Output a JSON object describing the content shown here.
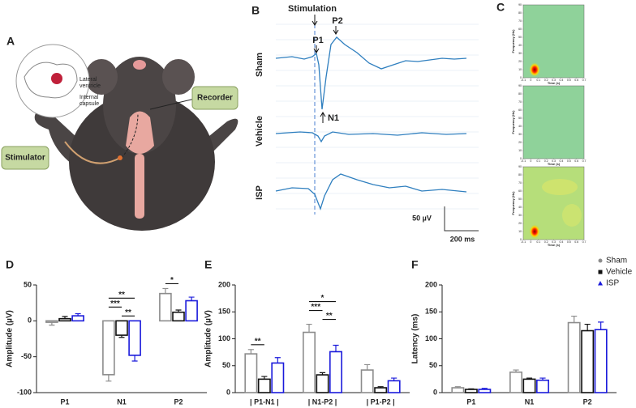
{
  "panel_a": {
    "letter": "A",
    "inset_labels": [
      [
        "Lateral",
        "ventricle"
      ],
      [
        "Internal",
        "capsule"
      ]
    ],
    "recorder": "Recorder",
    "stimulator": "Stimulator"
  },
  "panel_b": {
    "letter": "B",
    "stimulation": "Stimulation",
    "peaks": [
      "P1",
      "P2",
      "N1"
    ],
    "rows": [
      "Sham",
      "Vehicle",
      "ISP"
    ],
    "scale_v": "50 µV",
    "scale_t": "200 ms"
  },
  "panel_c": {
    "letter": "C",
    "ylabel": "Frequency (Hz)",
    "xlabel": "Time (s)",
    "ylim": [
      0,
      90
    ],
    "yticks": [
      0,
      10,
      20,
      30,
      40,
      50,
      60,
      70,
      80,
      90
    ],
    "xlim": [
      -0.1,
      0.7
    ],
    "xticks": [
      -0.1,
      0,
      0.1,
      0.2,
      0.3,
      0.4,
      0.5,
      0.6,
      0.7
    ]
  },
  "chart_data": [
    {
      "type": "bar",
      "panel": "D",
      "ylabel": "Amplitude (µV)",
      "categories": [
        "P1",
        "N1",
        "P2"
      ],
      "ylim": [
        -100,
        50
      ],
      "yticks": [
        -100,
        -50,
        0,
        50
      ],
      "series": [
        {
          "name": "Sham",
          "color": "#8c8c8c",
          "values": [
            -2,
            -75,
            38
          ],
          "errors": [
            4,
            9,
            7
          ]
        },
        {
          "name": "Vehicle",
          "color": "#111111",
          "values": [
            3,
            -20,
            12
          ],
          "errors": [
            3,
            3,
            3
          ]
        },
        {
          "name": "ISP",
          "color": "#1a1adb",
          "values": [
            7,
            -48,
            28
          ],
          "errors": [
            3,
            8,
            5
          ]
        }
      ],
      "annotations": [
        {
          "text": "**",
          "category": "N1",
          "between": [
            "Vehicle",
            "ISP"
          ]
        },
        {
          "text": "***",
          "category": "N1",
          "between": [
            "Sham",
            "Vehicle"
          ]
        },
        {
          "text": "**",
          "category": "N1",
          "between": [
            "Sham",
            "ISP"
          ]
        },
        {
          "text": "*",
          "category": "P2",
          "between": [
            "Sham",
            "Vehicle"
          ]
        }
      ]
    },
    {
      "type": "bar",
      "panel": "E",
      "ylabel": "Amplitude (µV)",
      "categories": [
        "| P1-N1 |",
        "| N1-P2 |",
        "| P1-P2 |"
      ],
      "ylim": [
        0,
        200
      ],
      "yticks": [
        0,
        50,
        100,
        150,
        200
      ],
      "series": [
        {
          "name": "Sham",
          "color": "#8c8c8c",
          "values": [
            72,
            112,
            42
          ],
          "errors": [
            8,
            15,
            10
          ]
        },
        {
          "name": "Vehicle",
          "color": "#111111",
          "values": [
            25,
            33,
            9
          ],
          "errors": [
            5,
            4,
            2
          ]
        },
        {
          "name": "ISP",
          "color": "#1a1adb",
          "values": [
            55,
            76,
            22
          ],
          "errors": [
            10,
            12,
            5
          ]
        }
      ],
      "annotations": [
        {
          "text": "**",
          "category": "| P1-N1 |",
          "between": [
            "Sham",
            "Vehicle"
          ]
        },
        {
          "text": "**",
          "category": "| N1-P2 |",
          "between": [
            "Vehicle",
            "ISP"
          ]
        },
        {
          "text": "***",
          "category": "| N1-P2 |",
          "between": [
            "Sham",
            "Vehicle"
          ]
        },
        {
          "text": "*",
          "category": "| N1-P2 |",
          "between": [
            "Sham",
            "ISP"
          ]
        }
      ]
    },
    {
      "type": "bar",
      "panel": "F",
      "ylabel": "Latency (ms)",
      "categories": [
        "P1",
        "N1",
        "P2"
      ],
      "ylim": [
        0,
        200
      ],
      "yticks": [
        0,
        50,
        100,
        150,
        200
      ],
      "legend": "top-right",
      "series": [
        {
          "name": "Sham",
          "color": "#8c8c8c",
          "values": [
            9,
            38,
            130
          ],
          "errors": [
            2,
            4,
            12
          ]
        },
        {
          "name": "Vehicle",
          "color": "#111111",
          "values": [
            6,
            25,
            115
          ],
          "errors": [
            1,
            2,
            12
          ]
        },
        {
          "name": "ISP",
          "color": "#1a1adb",
          "values": [
            6,
            23,
            117
          ],
          "errors": [
            2,
            4,
            14
          ]
        }
      ]
    }
  ]
}
